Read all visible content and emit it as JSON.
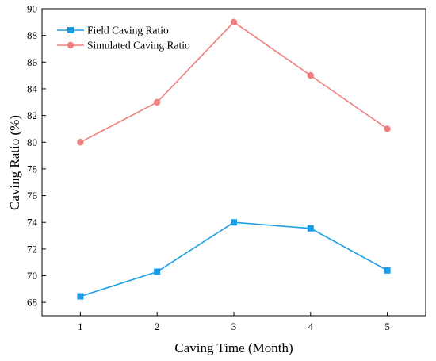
{
  "chart_data": {
    "type": "line",
    "title": "",
    "xlabel": "Caving Time (Month)",
    "ylabel": "Caving Ratio (%)",
    "x": [
      1,
      2,
      3,
      4,
      5
    ],
    "xlim": [
      0.5,
      5.5
    ],
    "ylim": [
      67,
      90
    ],
    "xticks": [
      "1",
      "2",
      "3",
      "4",
      "5"
    ],
    "yticks": [
      "68",
      "70",
      "72",
      "74",
      "76",
      "78",
      "80",
      "82",
      "84",
      "86",
      "88",
      "90"
    ],
    "grid": false,
    "legend_position": "top-left",
    "series": [
      {
        "name": "Field Caving Ratio",
        "values": [
          68.45,
          70.3,
          74.0,
          73.55,
          70.4
        ],
        "color": "#1a9ee8",
        "marker": "square"
      },
      {
        "name": "Simulated Caving Ratio",
        "values": [
          80.0,
          83.0,
          89.0,
          85.0,
          81.0
        ],
        "color": "#f08080",
        "marker": "circle"
      }
    ]
  }
}
